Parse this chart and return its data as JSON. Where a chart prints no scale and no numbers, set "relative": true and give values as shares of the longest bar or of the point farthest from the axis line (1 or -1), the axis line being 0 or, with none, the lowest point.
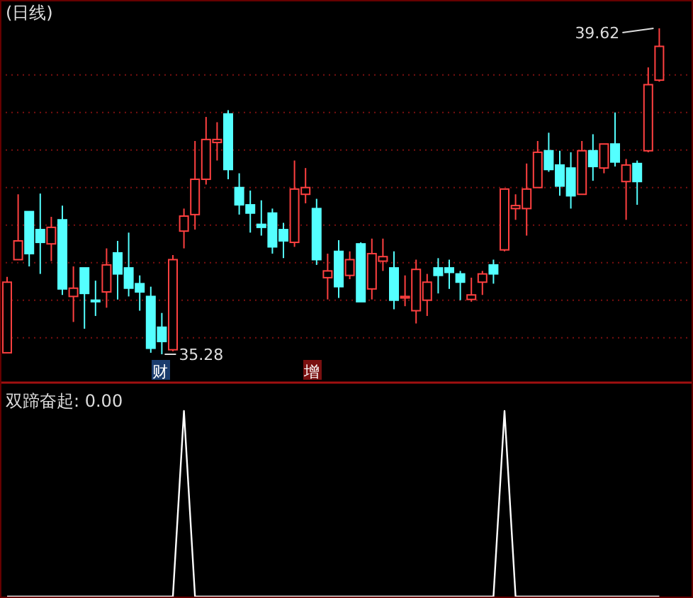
{
  "chart_data": [
    {
      "type": "candlestick",
      "title": "(日线)",
      "categories": [
        null,
        null,
        null,
        null,
        null,
        null,
        null,
        null,
        null,
        null,
        null,
        null,
        null,
        null,
        null,
        null,
        null,
        null,
        null,
        null,
        null,
        null,
        null,
        null,
        null,
        null,
        null,
        null,
        null,
        null,
        null,
        null,
        null,
        null,
        null,
        null,
        null,
        null,
        null,
        null,
        null,
        null,
        null,
        null,
        null,
        null,
        null,
        null,
        null,
        null,
        null,
        null,
        null,
        null,
        null,
        null,
        null,
        null,
        null,
        null
      ],
      "ohlc": [
        [
          35.3,
          36.31,
          35.3,
          36.24
        ],
        [
          36.54,
          37.41,
          36.54,
          36.79
        ],
        [
          37.18,
          37.18,
          36.45,
          36.62
        ],
        [
          36.94,
          37.42,
          36.35,
          36.77
        ],
        [
          36.75,
          37.11,
          36.52,
          36.97
        ],
        [
          37.07,
          37.26,
          36.07,
          36.15
        ],
        [
          36.05,
          36.45,
          35.71,
          36.16
        ],
        [
          36.43,
          36.43,
          35.62,
          36.09
        ],
        [
          36.0,
          36.26,
          35.79,
          35.98
        ],
        [
          36.11,
          36.69,
          35.9,
          36.47
        ],
        [
          36.63,
          36.79,
          36.01,
          36.35
        ],
        [
          36.43,
          36.9,
          36.05,
          36.16
        ],
        [
          36.22,
          36.33,
          35.86,
          36.11
        ],
        [
          36.05,
          36.18,
          35.3,
          35.36
        ],
        [
          35.64,
          35.83,
          35.28,
          35.45
        ],
        [
          35.34,
          36.6,
          35.32,
          36.54
        ],
        [
          36.92,
          37.22,
          36.69,
          37.12
        ],
        [
          37.14,
          38.12,
          36.94,
          37.61
        ],
        [
          37.61,
          38.44,
          37.54,
          38.14
        ],
        [
          38.1,
          38.37,
          37.86,
          38.14
        ],
        [
          38.48,
          38.53,
          37.61,
          37.74
        ],
        [
          37.5,
          37.69,
          37.14,
          37.27
        ],
        [
          37.27,
          37.46,
          36.9,
          37.16
        ],
        [
          37.01,
          37.33,
          36.86,
          36.97
        ],
        [
          37.16,
          37.22,
          36.62,
          36.71
        ],
        [
          36.94,
          37.03,
          36.56,
          36.79
        ],
        [
          36.77,
          37.86,
          36.71,
          37.48
        ],
        [
          37.41,
          37.76,
          37.29,
          37.5
        ],
        [
          37.22,
          37.35,
          36.47,
          36.54
        ],
        [
          36.3,
          36.62,
          36.01,
          36.39
        ],
        [
          36.65,
          36.8,
          36.03,
          36.18
        ],
        [
          36.33,
          36.65,
          36.28,
          36.54
        ],
        [
          36.75,
          36.77,
          35.98,
          35.98
        ],
        [
          36.15,
          36.82,
          36.01,
          36.62
        ],
        [
          36.52,
          36.82,
          36.39,
          36.58
        ],
        [
          36.43,
          36.65,
          35.88,
          36.0
        ],
        [
          36.03,
          36.33,
          35.92,
          36.05
        ],
        [
          35.86,
          36.54,
          35.69,
          36.41
        ],
        [
          36.0,
          36.35,
          35.79,
          36.24
        ],
        [
          36.43,
          36.56,
          36.09,
          36.33
        ],
        [
          36.43,
          36.54,
          36.15,
          36.37
        ],
        [
          36.35,
          36.39,
          36.0,
          36.24
        ],
        [
          36.01,
          36.3,
          35.98,
          36.07
        ],
        [
          36.24,
          36.39,
          36.07,
          36.35
        ],
        [
          36.47,
          36.54,
          36.22,
          36.35
        ],
        [
          36.67,
          37.48,
          36.65,
          37.48
        ],
        [
          37.22,
          37.41,
          37.07,
          37.26
        ],
        [
          37.22,
          37.82,
          36.86,
          37.48
        ],
        [
          37.5,
          38.12,
          37.5,
          37.97
        ],
        [
          37.99,
          38.23,
          37.71,
          37.74
        ],
        [
          37.8,
          37.99,
          37.39,
          37.52
        ],
        [
          37.76,
          37.97,
          37.22,
          37.39
        ],
        [
          37.41,
          38.12,
          37.41,
          37.99
        ],
        [
          37.99,
          38.21,
          37.59,
          37.78
        ],
        [
          37.76,
          38.08,
          37.69,
          38.08
        ],
        [
          38.08,
          38.5,
          37.78,
          37.84
        ],
        [
          37.58,
          37.88,
          37.07,
          37.8
        ],
        [
          37.82,
          37.86,
          37.27,
          37.58
        ],
        [
          37.99,
          39.1,
          37.97,
          38.87
        ],
        [
          38.93,
          39.62,
          38.91,
          39.38
        ]
      ],
      "colors": [
        "#ff4040",
        "#ff4040",
        "#54ffff",
        "#54ffff",
        "#ff4040",
        "#54ffff",
        "#ff4040",
        "#54ffff",
        "#54ffff",
        "#ff4040",
        "#54ffff",
        "#54ffff",
        "#54ffff",
        "#54ffff",
        "#54ffff",
        "#ff4040",
        "#ff4040",
        "#ff4040",
        "#ff4040",
        "#ff4040",
        "#54ffff",
        "#54ffff",
        "#54ffff",
        "#54ffff",
        "#54ffff",
        "#54ffff",
        "#ff4040",
        "#ff4040",
        "#54ffff",
        "#ff4040",
        "#54ffff",
        "#ff4040",
        "#54ffff",
        "#ff4040",
        "#ff4040",
        "#54ffff",
        "#ff4040",
        "#ff4040",
        "#ff4040",
        "#54ffff",
        "#54ffff",
        "#54ffff",
        "#ff4040",
        "#ff4040",
        "#54ffff",
        "#ff4040",
        "#ff4040",
        "#ff4040",
        "#ff4040",
        "#54ffff",
        "#54ffff",
        "#54ffff",
        "#ff4040",
        "#54ffff",
        "#ff4040",
        "#54ffff",
        "#ff4040",
        "#54ffff",
        "#ff4040",
        "#ff4040"
      ],
      "yticks": [
        {
          "value": 35.5,
          "label": null
        },
        {
          "value": 36,
          "label": null
        },
        {
          "value": 36.5,
          "label": null
        },
        {
          "value": 37,
          "label": null
        },
        {
          "value": 37.5,
          "label": null
        },
        {
          "value": 38,
          "label": null
        },
        {
          "value": 38.5,
          "label": null
        },
        {
          "value": 39,
          "label": null
        }
      ],
      "grid": "y",
      "annotations": [
        "39.62",
        "35.28",
        "财",
        "增"
      ]
    },
    {
      "type": "line",
      "title": "双蹄奋起: 0.00",
      "relative": true,
      "categories": [
        null,
        null,
        null,
        null,
        null,
        null,
        null,
        null,
        null,
        null,
        null,
        null,
        null,
        null,
        null,
        null,
        null,
        null,
        null,
        null,
        null,
        null,
        null,
        null,
        null,
        null,
        null,
        null,
        null,
        null,
        null,
        null,
        null,
        null,
        null,
        null,
        null,
        null,
        null,
        null,
        null,
        null,
        null,
        null,
        null,
        null,
        null,
        null,
        null,
        null,
        null,
        null,
        null,
        null,
        null,
        null,
        null,
        null,
        null,
        null
      ],
      "series": [
        {
          "color": "#ffffff",
          "values": [
            0,
            0,
            0,
            0,
            0,
            0,
            0,
            0,
            0,
            0,
            0,
            0,
            0,
            0,
            0,
            0,
            1,
            0,
            0,
            0,
            0,
            0,
            0,
            0,
            0,
            0,
            0,
            0,
            0,
            0,
            0,
            0,
            0,
            0,
            0,
            0,
            0,
            0,
            0,
            0,
            0,
            0,
            0,
            0,
            0,
            1,
            0,
            0,
            0,
            0,
            0,
            0,
            0,
            0,
            0,
            0,
            0,
            0,
            0,
            0
          ]
        }
      ]
    }
  ]
}
